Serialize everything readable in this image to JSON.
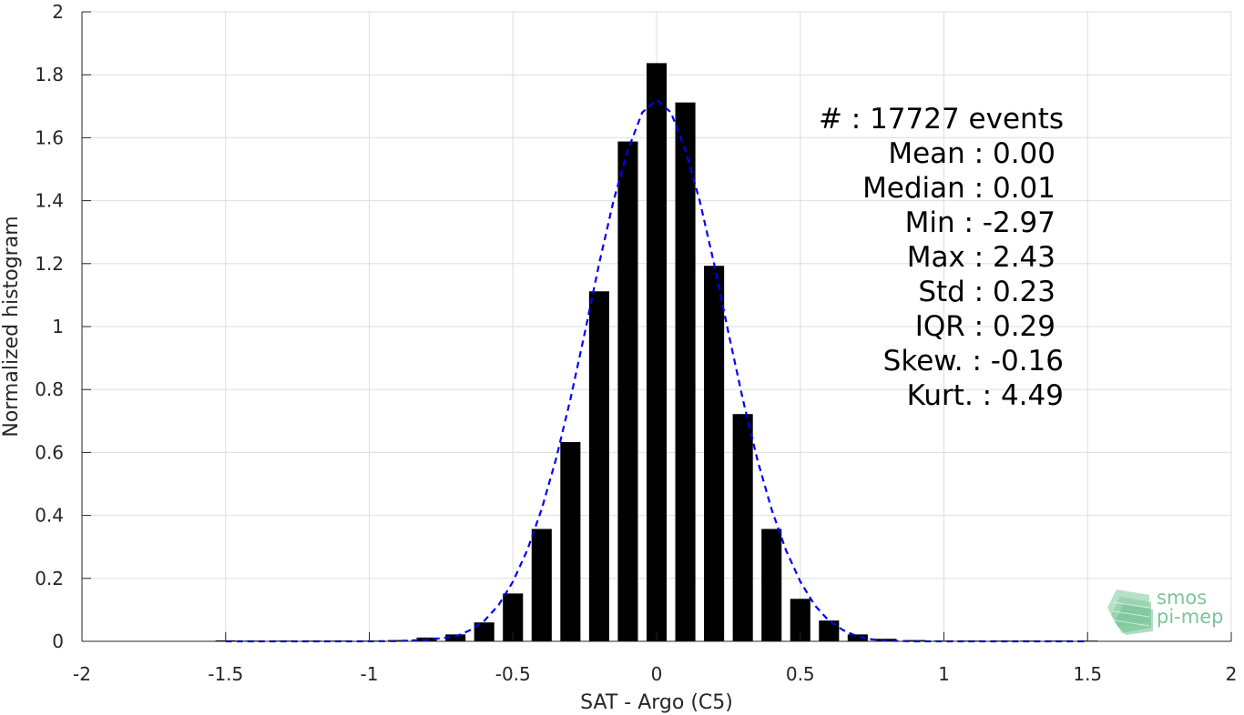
{
  "chart_data": {
    "type": "bar",
    "xlabel": "SAT - Argo (C5)",
    "ylabel": "Normalized histogram",
    "xlim": [
      -2,
      2
    ],
    "ylim": [
      0,
      2
    ],
    "xticks": [
      "-2",
      "-1.5",
      "-1",
      "-0.5",
      "0",
      "0.5",
      "1",
      "1.5",
      "2"
    ],
    "yticks": [
      "0",
      "0.2",
      "0.4",
      "0.6",
      "0.8",
      "1",
      "1.2",
      "1.4",
      "1.6",
      "1.8",
      "2"
    ],
    "grid": true,
    "bar_color": "#000000",
    "bars": {
      "x": [
        -1.5,
        -1.4,
        -1.3,
        -1.2,
        -1.1,
        -1.0,
        -0.9,
        -0.8,
        -0.7,
        -0.6,
        -0.5,
        -0.4,
        -0.3,
        -0.2,
        -0.1,
        0.0,
        0.1,
        0.2,
        0.3,
        0.4,
        0.5,
        0.6,
        0.7,
        0.8,
        0.9,
        1.0,
        1.1,
        1.2,
        1.3,
        1.4,
        1.5
      ],
      "values": [
        0.003,
        0.001,
        0.001,
        0.001,
        0.001,
        0.002,
        0.004,
        0.012,
        0.022,
        0.06,
        0.152,
        0.357,
        0.633,
        1.112,
        1.588,
        1.837,
        1.712,
        1.193,
        0.722,
        0.357,
        0.135,
        0.066,
        0.022,
        0.008,
        0.004,
        0.002,
        0.001,
        0.001,
        0.001,
        0.001,
        0.001
      ]
    },
    "series": [
      {
        "style": "dashed",
        "color": "#0000ff",
        "x": [
          -1.5,
          -1.4,
          -1.3,
          -1.2,
          -1.1,
          -1.0,
          -0.9,
          -0.8,
          -0.7,
          -0.65,
          -0.6,
          -0.55,
          -0.5,
          -0.45,
          -0.4,
          -0.35,
          -0.3,
          -0.25,
          -0.2,
          -0.15,
          -0.1,
          -0.05,
          0.0,
          0.05,
          0.1,
          0.15,
          0.2,
          0.25,
          0.3,
          0.35,
          0.4,
          0.45,
          0.5,
          0.55,
          0.6,
          0.65,
          0.7,
          0.75,
          0.8,
          0.9,
          1.0,
          1.1,
          1.2,
          1.3,
          1.4,
          1.5
        ],
        "values": [
          0.0,
          0.0,
          0.0,
          0.0,
          0.0,
          0.0,
          0.001,
          0.005,
          0.015,
          0.035,
          0.065,
          0.115,
          0.19,
          0.29,
          0.42,
          0.58,
          0.77,
          0.98,
          1.2,
          1.4,
          1.56,
          1.68,
          1.72,
          1.68,
          1.56,
          1.4,
          1.2,
          0.98,
          0.77,
          0.58,
          0.42,
          0.29,
          0.19,
          0.115,
          0.065,
          0.035,
          0.015,
          0.006,
          0.002,
          0.0,
          0.0,
          0.0,
          0.0,
          0.0,
          0.0,
          0.0
        ]
      }
    ],
    "annotations": [
      "#  : 17727 events",
      "Mean : 0.00",
      "Median : 0.01",
      "Min : -2.97",
      "Max : 2.43",
      "Std : 0.23",
      "IQR : 0.29",
      "Skew. : -0.16",
      "Kurt. : 4.49"
    ]
  },
  "logo": {
    "line1": "smos",
    "line2": "pi-mep"
  }
}
